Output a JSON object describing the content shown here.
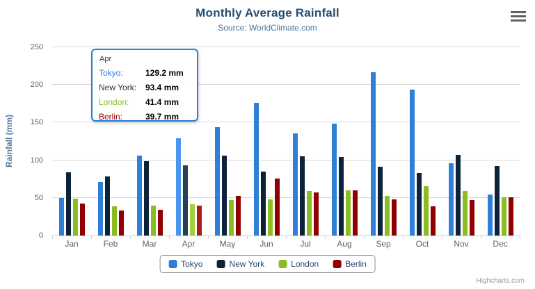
{
  "chart": {
    "title": "Monthly Average Rainfall",
    "subtitle": "Source: WorldClimate.com",
    "credits": "Highcharts.com"
  },
  "chart_data": {
    "type": "bar",
    "title": "Monthly Average Rainfall",
    "subtitle": "Source: WorldClimate.com",
    "xlabel": "",
    "ylabel": "Rainfall (mm)",
    "ylim": [
      0,
      250
    ],
    "yticks": [
      0,
      50,
      100,
      150,
      200,
      250
    ],
    "grid": true,
    "legend_position": "bottom",
    "categories": [
      "Jan",
      "Feb",
      "Mar",
      "Apr",
      "May",
      "Jun",
      "Jul",
      "Aug",
      "Sep",
      "Oct",
      "Nov",
      "Dec"
    ],
    "hover_category_index": 3,
    "series": [
      {
        "name": "Tokyo",
        "color": "#2f7ed8",
        "hover_color": "#4a96ee",
        "values": [
          49.9,
          71.5,
          106.4,
          129.2,
          144.0,
          176.0,
          135.6,
          148.5,
          216.4,
          194.1,
          95.6,
          54.4
        ]
      },
      {
        "name": "New York",
        "color": "#0d233a",
        "hover_color": "#27405a",
        "values": [
          83.6,
          78.8,
          98.5,
          93.4,
          106.0,
          84.5,
          105.0,
          104.3,
          91.2,
          83.5,
          106.6,
          92.3
        ]
      },
      {
        "name": "London",
        "color": "#8bbc21",
        "hover_color": "#a3d13c",
        "values": [
          48.9,
          38.8,
          39.3,
          41.4,
          47.0,
          48.3,
          59.0,
          59.6,
          52.4,
          65.2,
          59.3,
          51.2
        ]
      },
      {
        "name": "Berlin",
        "color": "#910000",
        "hover_color": "#aa1c1c",
        "values": [
          42.4,
          33.2,
          34.5,
          39.7,
          52.6,
          75.5,
          57.4,
          60.4,
          47.6,
          39.1,
          46.8,
          51.1
        ]
      }
    ]
  },
  "tooltip": {
    "header": "Apr",
    "rows": [
      {
        "label": "Tokyo:",
        "value": "129.2 mm",
        "color": "#2f7ed8"
      },
      {
        "label": "New York:",
        "value": "93.4 mm",
        "color": "#333333"
      },
      {
        "label": "London:",
        "value": "41.4 mm",
        "color": "#8bbc21"
      },
      {
        "label": "Berlin:",
        "value": "39.7 mm",
        "color": "#910000"
      }
    ]
  }
}
